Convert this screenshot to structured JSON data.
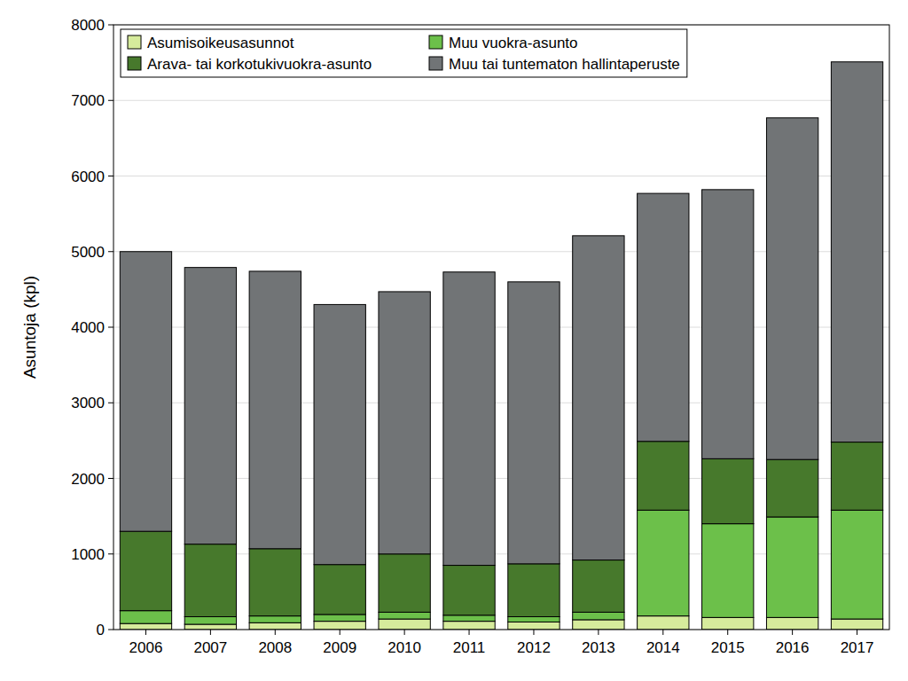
{
  "chart_data": {
    "type": "bar",
    "stacked": true,
    "grid": true,
    "legend": "top-left",
    "y_label": "Asuntoja (kpl)",
    "categories": [
      "2006",
      "2007",
      "2008",
      "2009",
      "2010",
      "2011",
      "2012",
      "2013",
      "2014",
      "2015",
      "2016",
      "2017"
    ],
    "ylim": [
      0,
      8000
    ],
    "yticks": [
      0,
      1000,
      2000,
      3000,
      4000,
      5000,
      6000,
      7000,
      8000
    ],
    "series": [
      {
        "name": "Asumisoikeusasunnot",
        "color": "#d6eb9c",
        "values": [
          80,
          70,
          90,
          110,
          140,
          110,
          100,
          130,
          180,
          160,
          160,
          140
        ]
      },
      {
        "name": "Muu vuokra-asunto",
        "color": "#6cc04a",
        "values": [
          170,
          100,
          90,
          90,
          90,
          80,
          70,
          100,
          1400,
          1240,
          1330,
          1440
        ]
      },
      {
        "name": "Arava- tai korkotukivuokra-asunto",
        "color": "#47792c",
        "values": [
          1050,
          960,
          890,
          660,
          770,
          660,
          700,
          690,
          910,
          860,
          760,
          900
        ]
      },
      {
        "name": "Muu tai tuntematon hallintaperuste",
        "color": "#717476",
        "values": [
          3700,
          3660,
          3670,
          3440,
          3470,
          3880,
          3730,
          4290,
          3280,
          3560,
          4520,
          5030
        ]
      }
    ]
  }
}
